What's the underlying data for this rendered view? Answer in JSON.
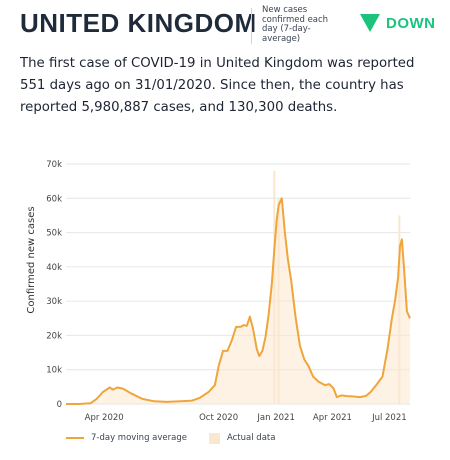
{
  "header": {
    "country": "UNITED KINGDOM",
    "metric": "New cases confirmed each day (7-day-average)",
    "trend": "DOWN",
    "trend_color": "#1bc47d"
  },
  "summary": "The first case of COVID-19 in United Kingdom was reported 551 days ago on 31/01/2020. Since then, the country has reported 5,980,887 cases, and 130,300 deaths.",
  "legend": {
    "line_label": "7-day moving average",
    "bar_label": "Actual data"
  },
  "chart_data": {
    "type": "area",
    "ylabel": "Confirmed new cases",
    "ylim": [
      0,
      70000
    ],
    "yticks": [
      0,
      10000,
      20000,
      30000,
      40000,
      50000,
      60000,
      70000
    ],
    "ytick_labels": [
      "0",
      "10k",
      "20k",
      "30k",
      "40k",
      "50k",
      "60k",
      "70k"
    ],
    "xlim": [
      "2020-01-31",
      "2021-08-03"
    ],
    "xticks": [
      "2020-04-01",
      "2020-10-01",
      "2021-01-01",
      "2021-04-01",
      "2021-07-01"
    ],
    "xtick_labels": [
      "Apr 2020",
      "Oct 2020",
      "Jan 2021",
      "Apr 2021",
      "Jul 2021"
    ],
    "grid": "horizontal",
    "colors": {
      "line": "#f0a53a",
      "bars": "#fbe7cd"
    },
    "series": [
      {
        "name": "7-day moving average",
        "x": [
          "2020-01-31",
          "2020-02-20",
          "2020-03-10",
          "2020-03-20",
          "2020-03-30",
          "2020-04-10",
          "2020-04-15",
          "2020-04-22",
          "2020-05-01",
          "2020-05-15",
          "2020-06-01",
          "2020-06-20",
          "2020-07-10",
          "2020-08-01",
          "2020-08-20",
          "2020-09-01",
          "2020-09-15",
          "2020-09-25",
          "2020-10-01",
          "2020-10-08",
          "2020-10-15",
          "2020-10-22",
          "2020-10-29",
          "2020-11-05",
          "2020-11-10",
          "2020-11-15",
          "2020-11-20",
          "2020-11-25",
          "2020-12-01",
          "2020-12-05",
          "2020-12-10",
          "2020-12-15",
          "2020-12-20",
          "2020-12-25",
          "2020-12-29",
          "2021-01-02",
          "2021-01-05",
          "2021-01-10",
          "2021-01-15",
          "2021-01-20",
          "2021-01-25",
          "2021-02-01",
          "2021-02-08",
          "2021-02-15",
          "2021-02-22",
          "2021-03-01",
          "2021-03-10",
          "2021-03-20",
          "2021-03-27",
          "2021-04-03",
          "2021-04-08",
          "2021-04-15",
          "2021-04-25",
          "2021-05-05",
          "2021-05-15",
          "2021-05-25",
          "2021-06-01",
          "2021-06-10",
          "2021-06-20",
          "2021-06-28",
          "2021-07-05",
          "2021-07-10",
          "2021-07-15",
          "2021-07-18",
          "2021-07-21",
          "2021-07-25",
          "2021-07-29",
          "2021-08-03"
        ],
        "y": [
          0,
          0,
          200,
          1500,
          3500,
          4800,
          4200,
          4800,
          4500,
          3000,
          1500,
          800,
          600,
          800,
          1000,
          1800,
          3500,
          5500,
          11000,
          15500,
          15500,
          18500,
          22500,
          22500,
          23000,
          22800,
          25500,
          22000,
          16000,
          14000,
          15500,
          19500,
          26000,
          35000,
          45000,
          54000,
          58000,
          60000,
          50000,
          42000,
          36000,
          25500,
          17000,
          13000,
          11000,
          8000,
          6500,
          5500,
          5800,
          4500,
          2000,
          2500,
          2300,
          2200,
          2000,
          2400,
          3500,
          5500,
          8000,
          16000,
          25000,
          30000,
          37000,
          46000,
          48000,
          38000,
          27000,
          25000
        ]
      },
      {
        "name": "Actual data",
        "x": [
          "2020-12-29",
          "2021-01-05",
          "2021-07-17"
        ],
        "y": [
          68000,
          60000,
          55000
        ]
      }
    ]
  }
}
